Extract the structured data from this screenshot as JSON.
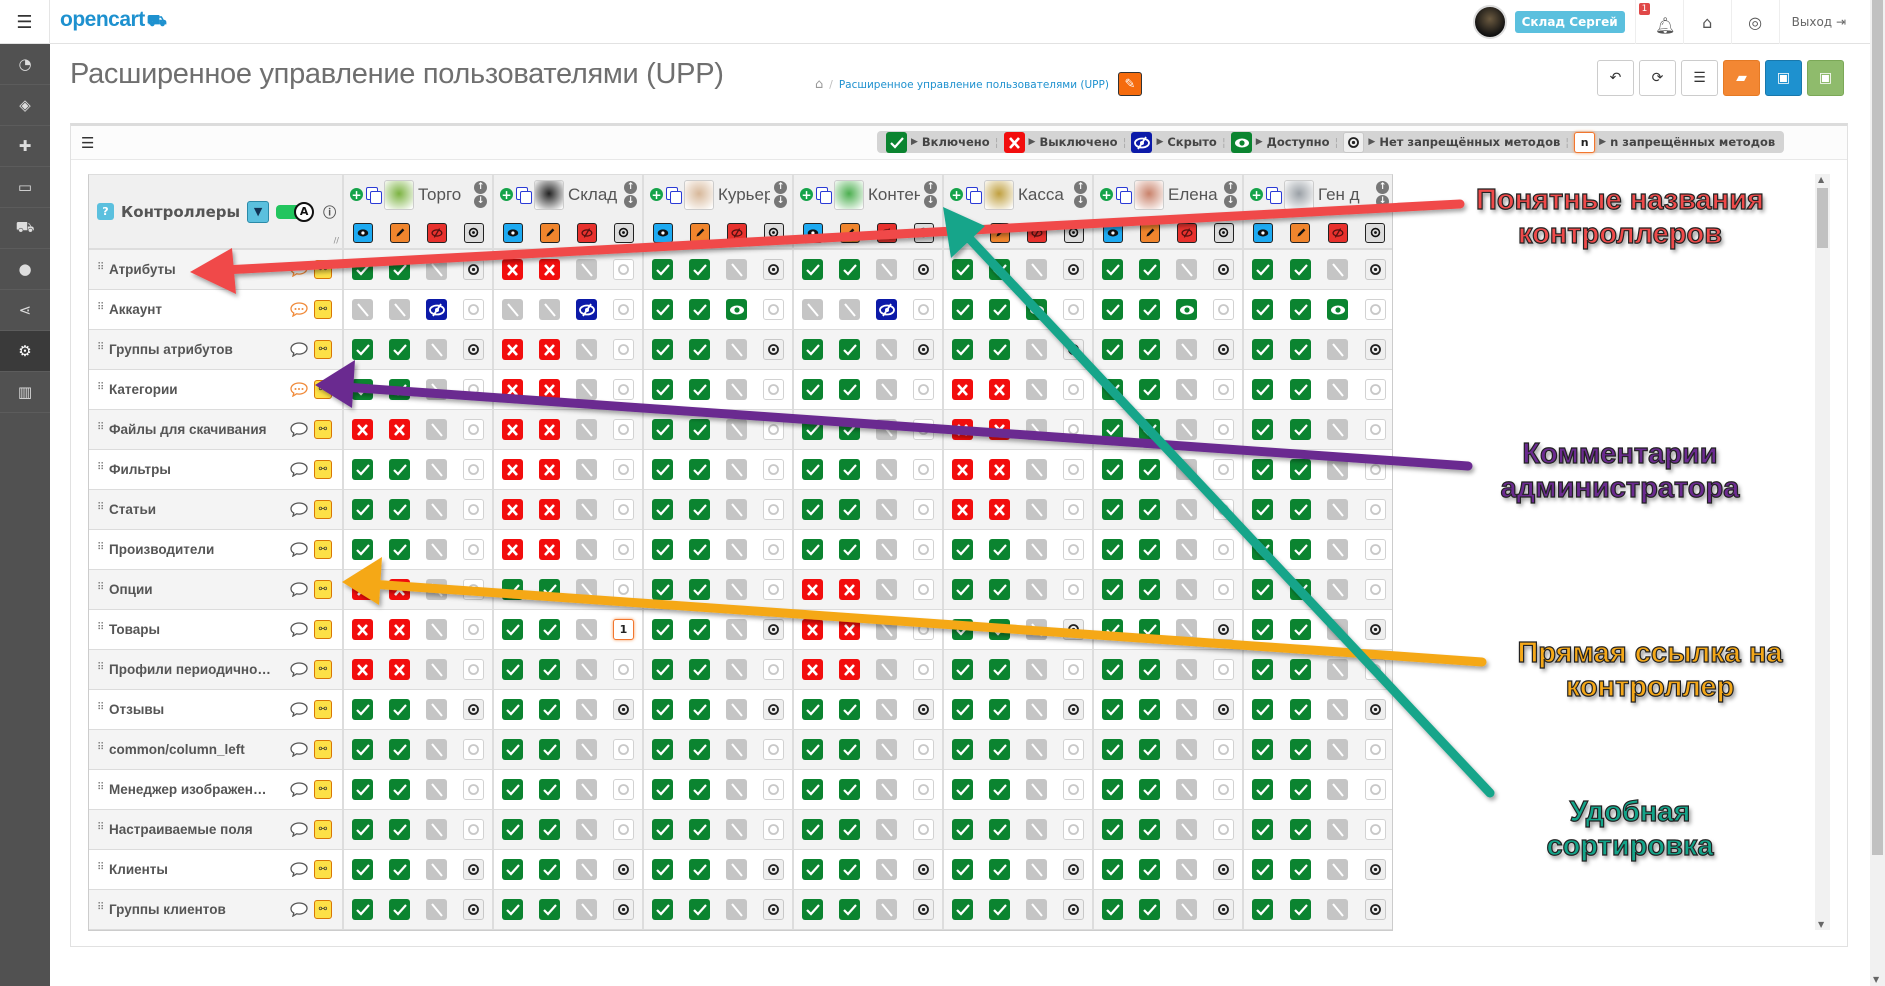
{
  "topbar": {
    "logo": "opencart",
    "user_badge": "Склад Сергей",
    "notifications": "1",
    "logout": "Выход"
  },
  "sidebar": {
    "items": [
      "dashboard",
      "catalog",
      "extensions",
      "design",
      "sales",
      "customers",
      "marketing",
      "system",
      "reports"
    ],
    "active": "system"
  },
  "page": {
    "title": "Расширенное управление пользователями (UPP)",
    "breadcrumb": "Расширенное управление пользователями (UPP)"
  },
  "legend": [
    {
      "code": "g",
      "label": "Включено"
    },
    {
      "code": "r",
      "label": "Выключено"
    },
    {
      "code": "b",
      "label": "Скрыто"
    },
    {
      "code": "e",
      "label": "Доступно"
    },
    {
      "code": "o",
      "label": "Нет запрещённых методов"
    },
    {
      "code": "n",
      "label": "n запрещённых методов",
      "badge": "n"
    }
  ],
  "table": {
    "header": "Контроллеры",
    "toggle_label": "A",
    "users": [
      {
        "name": "Торго",
        "avatar": "#7cb342",
        "cells": [
          "ggno",
          "nnbc",
          "ggno",
          "ggnc",
          "rrnc",
          "ggnc",
          "ggnc",
          "ggnc",
          "rrnc",
          "rrnc",
          "rrnc",
          "ggno",
          "ggnc",
          "ggnc",
          "ggnc",
          "ggno",
          "ggno"
        ]
      },
      {
        "name": "Склад",
        "avatar": "#222222",
        "cells": [
          "rrnc",
          "nnbc",
          "rrnc",
          "rrnc",
          "rrnc",
          "rrnc",
          "rrnc",
          "rrnc",
          "ggnc",
          "ggn1",
          "ggnc",
          "ggno",
          "ggnc",
          "ggnc",
          "ggnc",
          "ggno",
          "ggno"
        ]
      },
      {
        "name": "Курьер",
        "avatar": "#d7b89a",
        "cells": [
          "ggno",
          "ggec",
          "ggno",
          "ggnc",
          "ggnc",
          "ggnc",
          "ggnc",
          "ggnc",
          "ggnc",
          "ggno",
          "ggnc",
          "ggno",
          "ggnc",
          "ggnc",
          "ggnc",
          "ggno",
          "ggno"
        ]
      },
      {
        "name": "Контент",
        "avatar": "#4caf50",
        "cells": [
          "ggno",
          "nnbc",
          "ggno",
          "ggnc",
          "ggnc",
          "ggnc",
          "ggnc",
          "ggnc",
          "rrnc",
          "rrnc",
          "rrnc",
          "ggno",
          "ggnc",
          "ggnc",
          "ggnc",
          "ggno",
          "ggno"
        ]
      },
      {
        "name": "Касса",
        "avatar": "#c0a040",
        "cells": [
          "ggno",
          "ggec",
          "ggno",
          "rrnc",
          "rrnc",
          "rrnc",
          "rrnc",
          "ggnc",
          "ggnc",
          "ggno",
          "ggnc",
          "ggno",
          "ggnc",
          "ggnc",
          "ggnc",
          "ggno",
          "ggno"
        ]
      },
      {
        "name": "Елена",
        "avatar": "#c9826b",
        "cells": [
          "ggno",
          "ggec",
          "ggno",
          "ggnc",
          "ggnc",
          "ggnc",
          "ggnc",
          "ggnc",
          "ggnc",
          "ggno",
          "ggnc",
          "ggno",
          "ggnc",
          "ggnc",
          "ggnc",
          "ggno",
          "ggno"
        ]
      },
      {
        "name": "Ген д",
        "avatar": "#9aa0a6",
        "cells": [
          "ggno",
          "ggec",
          "ggno",
          "ggnc",
          "ggnc",
          "ggnc",
          "ggnc",
          "ggnc",
          "ggnc",
          "ggno",
          "ggnc",
          "ggno",
          "ggnc",
          "ggnc",
          "ggnc",
          "ggno",
          "ggno"
        ]
      }
    ],
    "rows": [
      {
        "label": "Атрибуты",
        "comment": true
      },
      {
        "label": "Аккаунт",
        "comment": true
      },
      {
        "label": "Группы атрибутов",
        "comment": false
      },
      {
        "label": "Категории",
        "comment": true
      },
      {
        "label": "Файлы для скачивания",
        "comment": false
      },
      {
        "label": "Фильтры",
        "comment": false
      },
      {
        "label": "Статьи",
        "comment": false
      },
      {
        "label": "Производители",
        "comment": false
      },
      {
        "label": "Опции",
        "comment": false
      },
      {
        "label": "Товары",
        "comment": false
      },
      {
        "label": "Профили периодично…",
        "comment": false
      },
      {
        "label": "Отзывы",
        "comment": false
      },
      {
        "label": "common/column_left",
        "comment": false
      },
      {
        "label": "Менеджер изображен…",
        "comment": false
      },
      {
        "label": "Настраиваемые поля",
        "comment": false
      },
      {
        "label": "Клиенты",
        "comment": false
      },
      {
        "label": "Группы клиентов",
        "comment": false
      }
    ]
  },
  "annotations": [
    {
      "text": "Понятные названия контроллеров",
      "line1": "Понятные названия",
      "line2": "контроллеров",
      "color": "#f04a4a"
    },
    {
      "text": "Комментарии администратора",
      "line1": "Комментарии",
      "line2": "администратора",
      "color": "#6b2a90"
    },
    {
      "text": "Прямая ссылка на контроллер",
      "line1": "Прямая ссылка на",
      "line2": "контроллер",
      "color": "#f5a818"
    },
    {
      "text": "Удобная сортировка",
      "line1": "Удобная",
      "line2": "сортировка",
      "color": "#13a58a"
    }
  ]
}
